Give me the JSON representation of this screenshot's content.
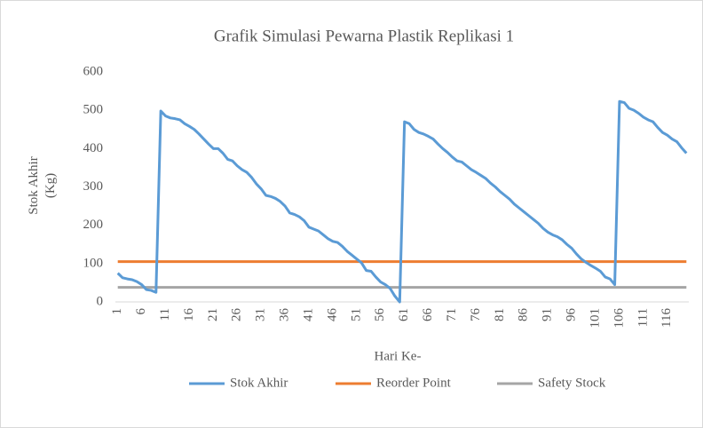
{
  "chart_data": {
    "type": "line",
    "title": "Grafik Simulasi Pewarna Plastik Replikasi 1",
    "x_label": "Hari Ke-",
    "y_label": "Stok Akhir (Kg)",
    "categories": [
      "1",
      null,
      null,
      null,
      null,
      "6",
      null,
      null,
      null,
      null,
      "11",
      null,
      null,
      null,
      null,
      "16",
      null,
      null,
      null,
      null,
      "21",
      null,
      null,
      null,
      null,
      "26",
      null,
      null,
      null,
      null,
      "31",
      null,
      null,
      null,
      null,
      "36",
      null,
      null,
      null,
      null,
      "41",
      null,
      null,
      null,
      null,
      "46",
      null,
      null,
      null,
      null,
      "51",
      null,
      null,
      null,
      null,
      "56",
      null,
      null,
      null,
      null,
      "61",
      null,
      null,
      null,
      null,
      "66",
      null,
      null,
      null,
      null,
      "71",
      null,
      null,
      null,
      null,
      "76",
      null,
      null,
      null,
      null,
      "81",
      null,
      null,
      null,
      null,
      "86",
      null,
      null,
      null,
      null,
      "91",
      null,
      null,
      null,
      null,
      "96",
      null,
      null,
      null,
      null,
      "101",
      null,
      null,
      null,
      null,
      "106",
      null,
      null,
      null,
      null,
      "111",
      null,
      null,
      null,
      null,
      "116",
      null,
      null,
      null,
      null
    ],
    "series": [
      {
        "name": "Stok Akhir",
        "color": "#5b9bd5",
        "values": [
          75,
          63,
          60,
          58,
          53,
          45,
          32,
          30,
          25,
          498,
          485,
          480,
          478,
          475,
          465,
          458,
          450,
          438,
          425,
          412,
          400,
          400,
          388,
          372,
          368,
          355,
          345,
          338,
          325,
          308,
          295,
          278,
          275,
          270,
          262,
          250,
          232,
          228,
          222,
          212,
          195,
          190,
          185,
          175,
          165,
          158,
          155,
          145,
          132,
          122,
          112,
          102,
          82,
          80,
          65,
          52,
          45,
          35,
          15,
          0,
          470,
          465,
          450,
          442,
          438,
          432,
          425,
          412,
          400,
          390,
          378,
          368,
          365,
          355,
          345,
          338,
          330,
          322,
          310,
          300,
          288,
          278,
          268,
          255,
          245,
          235,
          225,
          215,
          205,
          192,
          182,
          175,
          170,
          162,
          150,
          140,
          125,
          112,
          103,
          95,
          88,
          80,
          65,
          60,
          45,
          523,
          520,
          505,
          500,
          492,
          482,
          475,
          470,
          455,
          442,
          435,
          425,
          418,
          402,
          388
        ]
      },
      {
        "name": "Reorder Point",
        "color": "#ed7d31",
        "values": [
          105,
          105,
          105,
          105,
          105,
          105,
          105,
          105,
          105,
          105,
          105,
          105,
          105,
          105,
          105,
          105,
          105,
          105,
          105,
          105,
          105,
          105,
          105,
          105,
          105,
          105,
          105,
          105,
          105,
          105,
          105,
          105,
          105,
          105,
          105,
          105,
          105,
          105,
          105,
          105,
          105,
          105,
          105,
          105,
          105,
          105,
          105,
          105,
          105,
          105,
          105,
          105,
          105,
          105,
          105,
          105,
          105,
          105,
          105,
          105,
          105,
          105,
          105,
          105,
          105,
          105,
          105,
          105,
          105,
          105,
          105,
          105,
          105,
          105,
          105,
          105,
          105,
          105,
          105,
          105,
          105,
          105,
          105,
          105,
          105,
          105,
          105,
          105,
          105,
          105,
          105,
          105,
          105,
          105,
          105,
          105,
          105,
          105,
          105,
          105,
          105,
          105,
          105,
          105,
          105,
          105,
          105,
          105,
          105,
          105,
          105,
          105,
          105,
          105,
          105,
          105,
          105,
          105,
          105,
          105
        ]
      },
      {
        "name": "Safety Stock",
        "color": "#a5a5a5",
        "values": [
          38,
          38,
          38,
          38,
          38,
          38,
          38,
          38,
          38,
          38,
          38,
          38,
          38,
          38,
          38,
          38,
          38,
          38,
          38,
          38,
          38,
          38,
          38,
          38,
          38,
          38,
          38,
          38,
          38,
          38,
          38,
          38,
          38,
          38,
          38,
          38,
          38,
          38,
          38,
          38,
          38,
          38,
          38,
          38,
          38,
          38,
          38,
          38,
          38,
          38,
          38,
          38,
          38,
          38,
          38,
          38,
          38,
          38,
          38,
          38,
          38,
          38,
          38,
          38,
          38,
          38,
          38,
          38,
          38,
          38,
          38,
          38,
          38,
          38,
          38,
          38,
          38,
          38,
          38,
          38,
          38,
          38,
          38,
          38,
          38,
          38,
          38,
          38,
          38,
          38,
          38,
          38,
          38,
          38,
          38,
          38,
          38,
          38,
          38,
          38,
          38,
          38,
          38,
          38,
          38,
          38,
          38,
          38,
          38,
          38,
          38,
          38,
          38,
          38,
          38,
          38,
          38,
          38,
          38,
          38
        ]
      }
    ],
    "ylim": [
      0,
      600
    ],
    "yticks": [
      0,
      100,
      200,
      300,
      400,
      500,
      600
    ],
    "grid": false,
    "legend": "bottom"
  }
}
